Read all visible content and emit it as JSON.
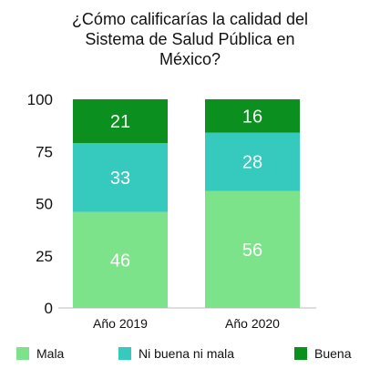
{
  "chart_data": {
    "type": "bar",
    "stacked": true,
    "title_lines": [
      "¿Cómo calificarías la calidad del",
      "Sistema de Salud Pública en",
      "México?"
    ],
    "categories": [
      "Año 2019",
      "Año 2020"
    ],
    "series": [
      {
        "name": "Mala",
        "values": [
          46,
          56
        ],
        "color": "#7de38a"
      },
      {
        "name": "Ni buena ni mala",
        "values": [
          33,
          28
        ],
        "color": "#36c9bd"
      },
      {
        "name": "Buena",
        "values": [
          21,
          16
        ],
        "color": "#0b8f1e"
      }
    ],
    "ylim": [
      0,
      100
    ],
    "yticks": [
      "0",
      "25",
      "50",
      "75",
      "100"
    ],
    "grid": false,
    "legend": "bottom"
  }
}
